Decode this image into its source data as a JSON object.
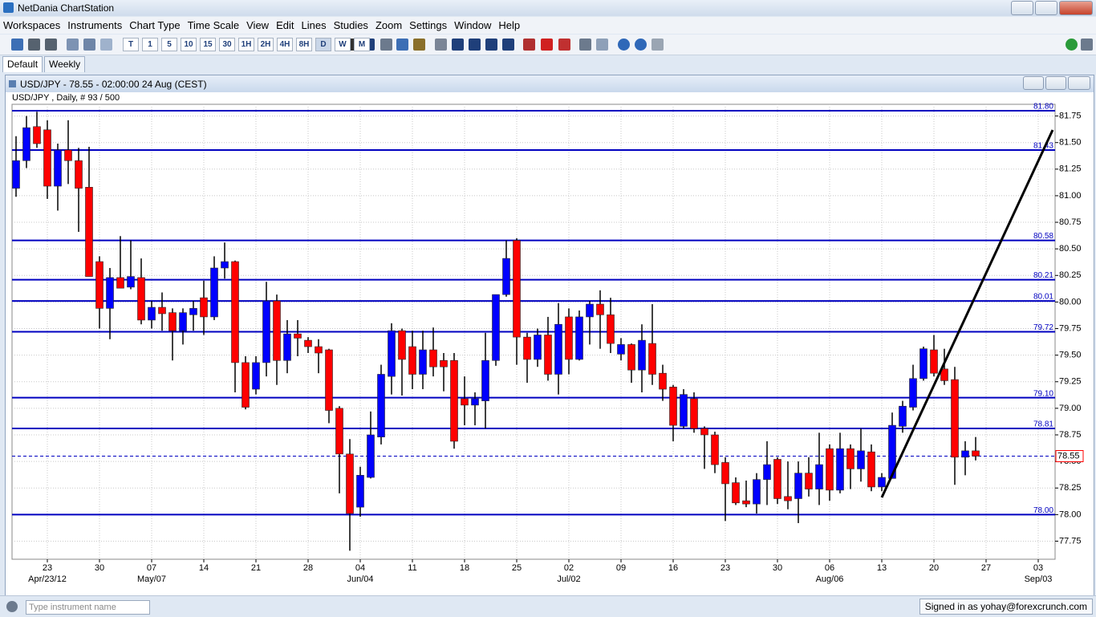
{
  "app": {
    "title": "NetDania ChartStation",
    "menu": [
      "Workspaces",
      "Instruments",
      "Chart Type",
      "Time Scale",
      "View",
      "Edit",
      "Lines",
      "Studies",
      "Zoom",
      "Settings",
      "Window",
      "Help"
    ],
    "timeframes": [
      "T",
      "1",
      "5",
      "10",
      "15",
      "30",
      "1H",
      "2H",
      "4H",
      "8H",
      "D",
      "W",
      "M"
    ],
    "tabs": [
      "Default",
      "Weekly"
    ],
    "search_placeholder": "Type instrument name",
    "status": "Signed in as yohay@forexcrunch.com"
  },
  "chart_data": {
    "type": "candlestick",
    "title": "USD/JPY - 78.55 - 02:00:00  24 Aug (CEST)",
    "subtitle": "USD/JPY , Daily, # 93 / 500",
    "up_color": "#0000ff",
    "down_color": "#ff0000",
    "level_color": "#0000c0",
    "grid": true,
    "categories": [
      null,
      null,
      null,
      "23",
      null,
      null,
      null,
      null,
      "30",
      null,
      null,
      null,
      null,
      "07",
      null,
      null,
      null,
      null,
      "14",
      null,
      null,
      null,
      null,
      "21",
      null,
      null,
      null,
      null,
      "28",
      null,
      null,
      null,
      null,
      "04",
      null,
      null,
      null,
      null,
      "11",
      null,
      null,
      null,
      null,
      "18",
      null,
      null,
      null,
      null,
      "25",
      null,
      null,
      null,
      null,
      "02",
      null,
      null,
      null,
      null,
      "09",
      null,
      null,
      null,
      null,
      "16",
      null,
      null,
      null,
      null,
      "23",
      null,
      null,
      null,
      null,
      "30",
      null,
      null,
      null,
      null,
      "06",
      null,
      null,
      null,
      null,
      "13",
      null,
      null,
      null,
      null,
      "20",
      null,
      null,
      null,
      null,
      "27",
      null,
      null,
      null,
      null,
      "03"
    ],
    "month_labels": [
      null,
      null,
      null,
      "Apr/23/12",
      null,
      null,
      null,
      null,
      null,
      null,
      null,
      null,
      null,
      "May/07",
      null,
      null,
      null,
      null,
      null,
      null,
      null,
      null,
      null,
      null,
      null,
      null,
      null,
      null,
      null,
      null,
      null,
      null,
      null,
      "Jun/04",
      null,
      null,
      null,
      null,
      null,
      null,
      null,
      null,
      null,
      null,
      null,
      null,
      null,
      null,
      null,
      null,
      null,
      null,
      null,
      "Jul/02",
      null,
      null,
      null,
      null,
      null,
      null,
      null,
      null,
      null,
      null,
      null,
      null,
      null,
      null,
      null,
      null,
      null,
      null,
      null,
      null,
      null,
      null,
      null,
      null,
      "Aug/06",
      null,
      null,
      null,
      null,
      null,
      null,
      null,
      null,
      null,
      null,
      null,
      null,
      null,
      null,
      null,
      null,
      null,
      null,
      null,
      "Sep/03"
    ],
    "open": [
      81.07,
      81.33,
      81.65,
      81.62,
      81.09,
      81.43,
      81.33,
      81.08,
      80.38,
      79.94,
      80.23,
      80.14,
      80.23,
      79.83,
      79.95,
      79.9,
      79.73,
      79.88,
      80.04,
      79.86,
      80.32,
      80.38,
      79.43,
      79.18,
      79.43,
      80.01,
      79.45,
      79.7,
      79.64,
      79.58,
      79.55,
      79.0,
      78.57,
      78.07,
      78.35,
      78.73,
      79.3,
      79.73,
      79.58,
      79.32,
      79.55,
      79.45,
      79.45,
      79.09,
      79.03,
      79.07,
      79.45,
      80.07,
      80.58,
      79.67,
      79.46,
      79.69,
      79.32,
      79.86,
      79.46,
      79.86,
      79.98,
      79.88,
      79.51,
      79.6,
      79.36,
      79.61,
      79.33,
      79.2,
      78.83,
      79.09,
      78.81,
      78.75,
      78.49,
      78.3,
      78.13,
      78.1,
      78.33,
      78.52,
      78.17,
      78.15,
      78.39,
      78.24,
      78.62,
      78.23,
      78.62,
      78.43,
      78.59,
      78.26,
      78.34,
      78.83,
      79.01,
      79.28,
      79.55,
      79.37,
      79.27,
      78.54,
      78.6,
      null,
      null,
      null,
      null,
      null,
      null
    ],
    "high": [
      81.56,
      81.75,
      81.79,
      81.71,
      81.49,
      81.71,
      81.45,
      81.46,
      80.43,
      80.32,
      80.62,
      80.58,
      80.41,
      80.01,
      80.09,
      79.94,
      79.94,
      80.01,
      80.2,
      80.43,
      80.56,
      80.39,
      79.49,
      79.49,
      80.19,
      80.07,
      79.83,
      79.83,
      79.67,
      79.65,
      79.56,
      79.02,
      78.71,
      78.45,
      78.97,
      79.41,
      79.8,
      79.75,
      79.73,
      79.73,
      79.76,
      79.52,
      79.52,
      79.3,
      79.15,
      79.71,
      80.07,
      80.58,
      80.6,
      79.71,
      79.75,
      79.86,
      79.99,
      79.94,
      79.92,
      80.01,
      80.11,
      80.04,
      79.66,
      79.61,
      79.79,
      79.98,
      79.41,
      79.22,
      79.18,
      79.15,
      78.83,
      78.78,
      78.54,
      78.35,
      78.32,
      78.39,
      78.69,
      78.54,
      78.5,
      78.5,
      78.54,
      78.77,
      78.66,
      78.77,
      78.66,
      78.81,
      78.66,
      78.39,
      78.96,
      79.07,
      79.41,
      79.58,
      79.69,
      79.56,
      79.39,
      78.69,
      78.73,
      null,
      null,
      null,
      null,
      null,
      null
    ],
    "low": [
      80.99,
      81.26,
      81.45,
      80.97,
      80.86,
      81.11,
      80.66,
      80.24,
      79.75,
      79.65,
      80.13,
      80.12,
      79.79,
      79.75,
      79.73,
      79.45,
      79.6,
      79.73,
      79.69,
      79.83,
      80.22,
      79.15,
      78.99,
      79.13,
      79.3,
      79.22,
      79.33,
      79.49,
      79.52,
      79.33,
      78.86,
      78.2,
      77.66,
      77.98,
      78.34,
      78.66,
      79.13,
      79.12,
      79.18,
      79.18,
      79.3,
      79.16,
      78.62,
      78.84,
      78.84,
      78.81,
      79.4,
      80.05,
      79.41,
      79.24,
      79.39,
      79.26,
      79.13,
      79.32,
      79.45,
      79.6,
      79.56,
      79.52,
      79.45,
      79.24,
      79.15,
      79.22,
      79.07,
      78.69,
      78.81,
      78.77,
      78.43,
      78.39,
      77.94,
      78.09,
      78.07,
      78.01,
      78.09,
      78.1,
      78.05,
      77.92,
      78.17,
      78.09,
      78.13,
      78.2,
      78.24,
      78.31,
      78.22,
      78.22,
      78.34,
      78.77,
      78.98,
      79.26,
      79.3,
      79.22,
      78.28,
      78.37,
      78.51,
      null,
      null,
      null,
      null,
      null,
      null
    ],
    "close": [
      81.33,
      81.64,
      81.49,
      81.09,
      81.43,
      81.33,
      81.07,
      80.24,
      79.94,
      80.23,
      80.13,
      80.24,
      79.83,
      79.95,
      79.89,
      79.73,
      79.9,
      79.94,
      79.86,
      80.32,
      80.38,
      79.43,
      79.01,
      79.43,
      80.01,
      79.45,
      79.7,
      79.66,
      79.58,
      79.52,
      78.98,
      78.57,
      78.01,
      78.37,
      78.75,
      79.32,
      79.73,
      79.46,
      79.32,
      79.55,
      79.39,
      79.39,
      78.69,
      79.03,
      79.09,
      79.45,
      80.07,
      80.41,
      79.67,
      79.46,
      79.69,
      79.32,
      79.79,
      79.46,
      79.86,
      79.98,
      79.88,
      79.61,
      79.6,
      79.36,
      79.64,
      79.32,
      79.18,
      78.84,
      79.13,
      78.81,
      78.75,
      78.47,
      78.29,
      78.11,
      78.1,
      78.33,
      78.47,
      78.15,
      78.13,
      78.39,
      78.24,
      78.47,
      78.23,
      78.62,
      78.43,
      78.6,
      78.26,
      78.35,
      78.84,
      79.02,
      79.28,
      79.56,
      79.33,
      79.26,
      78.54,
      78.6,
      78.55,
      null,
      null,
      null,
      null,
      null,
      null
    ],
    "levels": [
      {
        "value": 81.8,
        "label": "81.80"
      },
      81.43,
      80.58,
      80.21,
      80.01,
      79.72,
      {
        "value": 79.1,
        "label": "79.10"
      },
      78.81,
      {
        "value": 78,
        "label": "78.00"
      }
    ],
    "current_price": 78.55,
    "ylim": [
      77.58,
      81.86
    ],
    "yticks": [
      77.75,
      {
        "value": 78,
        "label": "78.00"
      },
      78.25,
      {
        "value": 78.5,
        "label": "78.50"
      },
      78.75,
      {
        "value": 79,
        "label": "79.00"
      },
      79.25,
      {
        "value": 79.5,
        "label": "79.50"
      },
      79.75,
      {
        "value": 80,
        "label": "80.00"
      },
      80.25,
      {
        "value": 80.5,
        "label": "80.50"
      },
      80.75,
      {
        "value": 81,
        "label": "81.00"
      },
      81.25,
      {
        "value": 81.5,
        "label": "81.50"
      },
      81.75
    ]
  }
}
